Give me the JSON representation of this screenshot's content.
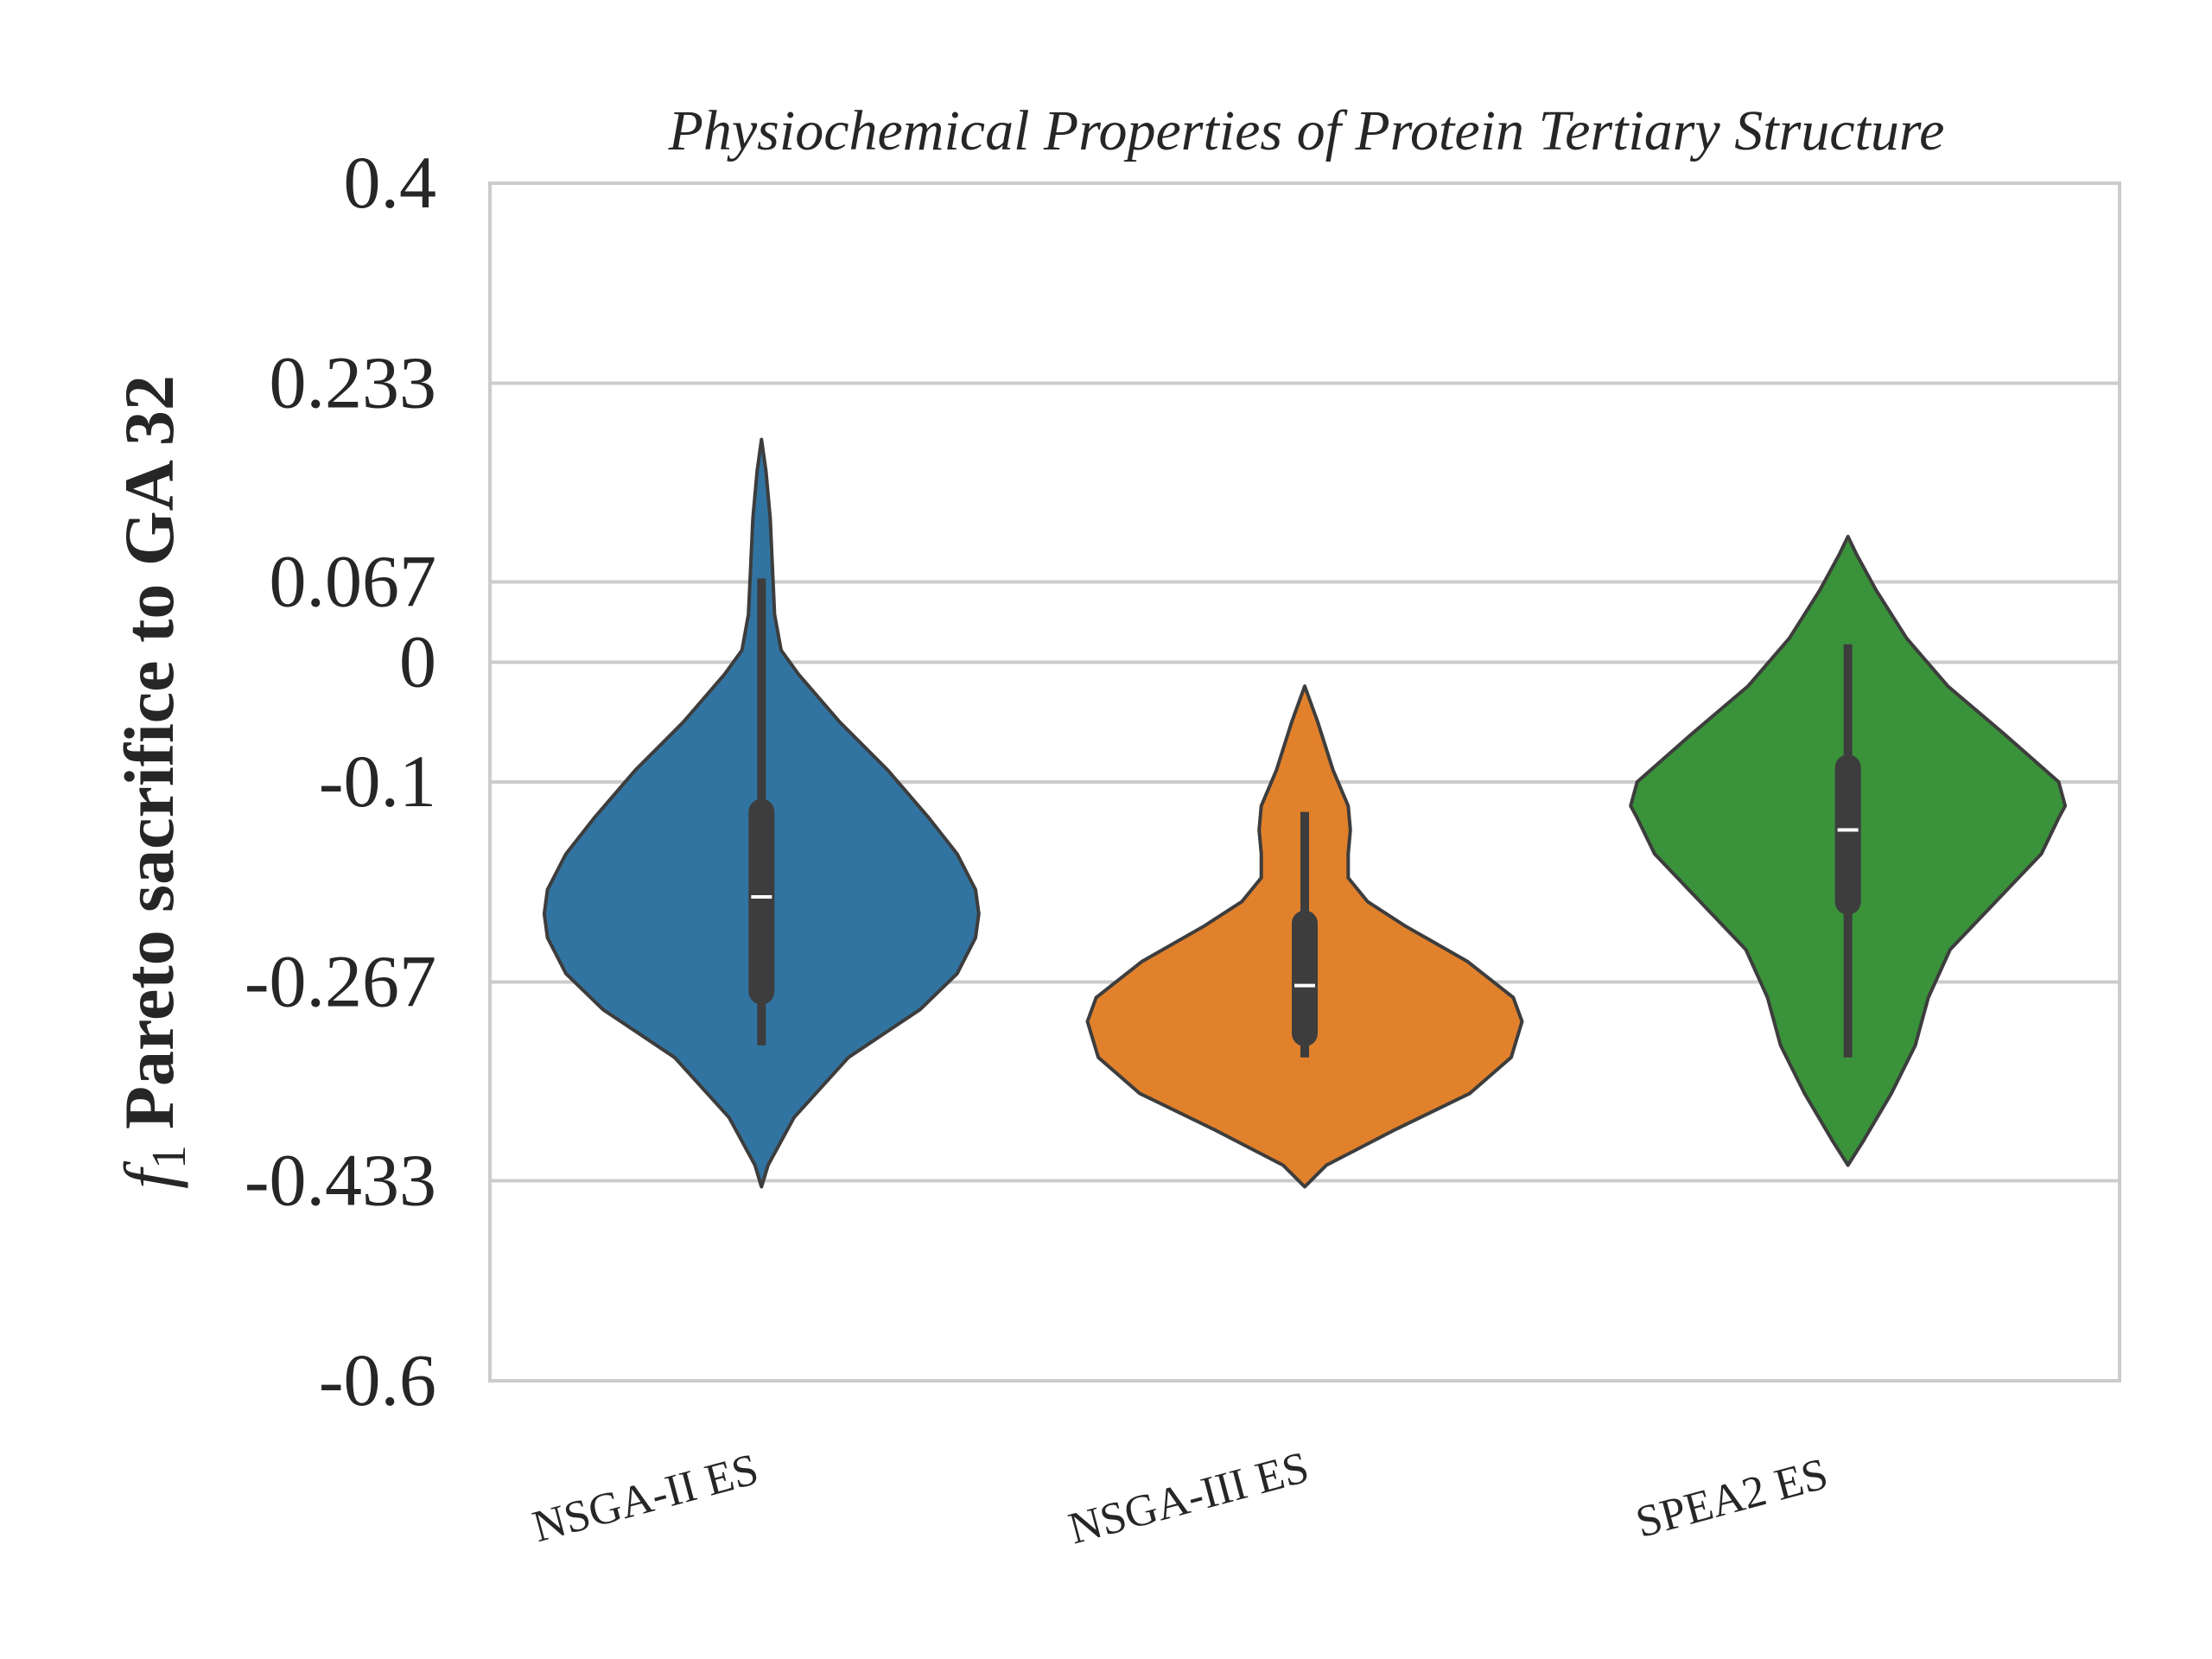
{
  "chart_data": {
    "type": "violin",
    "title": "Physiochemical Properties of Protein Tertiary Structure",
    "ylabel_symbol": "f",
    "ylabel_subscript": "1",
    "ylabel_text": "Pareto sacrifice to GA 32",
    "xlabel": "",
    "ylim": [
      -0.6,
      0.4
    ],
    "yticks": [
      0.4,
      0.233,
      0.067,
      0,
      -0.1,
      -0.267,
      -0.433,
      -0.6
    ],
    "ytick_labels": [
      "0.4",
      "0.233",
      "0.067",
      "0",
      "-0.1",
      "-0.267",
      "-0.433",
      "-0.6"
    ],
    "grid": true,
    "categories": [
      "NSGA-II ES",
      "NSGA-III ES",
      "SPEA2 ES"
    ],
    "colors": [
      "#3274a1",
      "#e1812c",
      "#3a923a"
    ],
    "series": [
      {
        "category": "NSGA-II ES",
        "min": -0.32,
        "q1": -0.275,
        "median": -0.196,
        "q3": -0.125,
        "max": 0.07,
        "violin_range": [
          -0.438,
          0.186
        ],
        "density": [
          [
            -0.438,
            0.0
          ],
          [
            -0.42,
            0.03
          ],
          [
            -0.38,
            0.15
          ],
          [
            -0.33,
            0.4
          ],
          [
            -0.29,
            0.73
          ],
          [
            -0.26,
            0.9
          ],
          [
            -0.23,
            0.985
          ],
          [
            -0.21,
            1.0
          ],
          [
            -0.19,
            0.985
          ],
          [
            -0.16,
            0.9
          ],
          [
            -0.13,
            0.77
          ],
          [
            -0.09,
            0.58
          ],
          [
            -0.05,
            0.36
          ],
          [
            -0.01,
            0.17
          ],
          [
            0.01,
            0.09
          ],
          [
            0.04,
            0.06
          ],
          [
            0.08,
            0.05
          ],
          [
            0.12,
            0.04
          ],
          [
            0.16,
            0.02
          ],
          [
            0.186,
            0.0
          ]
        ]
      },
      {
        "category": "NSGA-III ES",
        "min": -0.33,
        "q1": -0.31,
        "median": -0.27,
        "q3": -0.218,
        "max": -0.125,
        "violin_range": [
          -0.438,
          -0.02
        ],
        "density": [
          [
            -0.438,
            0.0
          ],
          [
            -0.42,
            0.1
          ],
          [
            -0.39,
            0.42
          ],
          [
            -0.36,
            0.76
          ],
          [
            -0.33,
            0.95
          ],
          [
            -0.3,
            1.0
          ],
          [
            -0.28,
            0.96
          ],
          [
            -0.25,
            0.75
          ],
          [
            -0.22,
            0.46
          ],
          [
            -0.2,
            0.29
          ],
          [
            -0.18,
            0.2
          ],
          [
            -0.16,
            0.2
          ],
          [
            -0.14,
            0.21
          ],
          [
            -0.12,
            0.2
          ],
          [
            -0.09,
            0.13
          ],
          [
            -0.05,
            0.06
          ],
          [
            -0.02,
            0.0
          ]
        ]
      },
      {
        "category": "SPEA2 ES",
        "min": -0.33,
        "q1": -0.2,
        "median": -0.14,
        "q3": -0.088,
        "max": 0.015,
        "violin_range": [
          -0.42,
          0.105
        ],
        "density": [
          [
            -0.42,
            0.0
          ],
          [
            -0.4,
            0.07
          ],
          [
            -0.36,
            0.2
          ],
          [
            -0.32,
            0.31
          ],
          [
            -0.28,
            0.37
          ],
          [
            -0.24,
            0.47
          ],
          [
            -0.2,
            0.68
          ],
          [
            -0.16,
            0.89
          ],
          [
            -0.13,
            0.97
          ],
          [
            -0.12,
            1.0
          ],
          [
            -0.1,
            0.97
          ],
          [
            -0.06,
            0.72
          ],
          [
            -0.02,
            0.46
          ],
          [
            0.02,
            0.27
          ],
          [
            0.06,
            0.13
          ],
          [
            0.09,
            0.04
          ],
          [
            0.105,
            0.0
          ]
        ]
      }
    ]
  }
}
